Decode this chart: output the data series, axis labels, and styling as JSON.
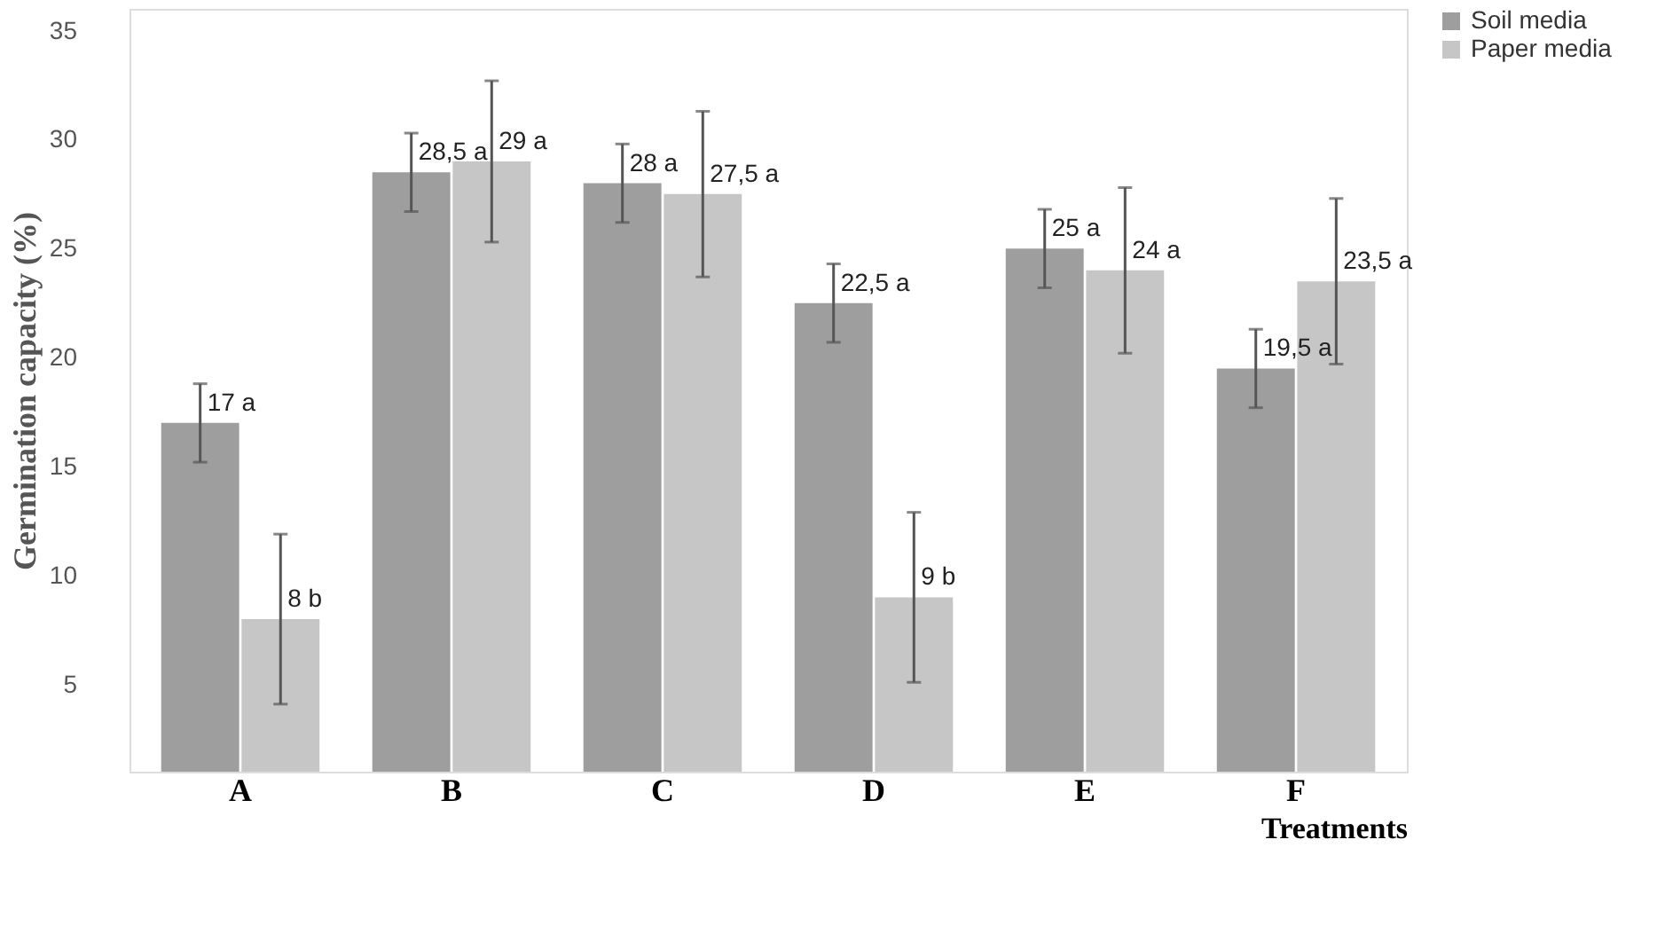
{
  "chart_data": {
    "type": "bar",
    "ylabel": "Germination capacity (%)",
    "xlabel": "Treatments",
    "categories": [
      "A",
      "B",
      "C",
      "D",
      "E",
      "F"
    ],
    "series": [
      {
        "name": "Soil  media",
        "color": "#9e9e9e",
        "values": [
          17,
          28.5,
          28,
          22.5,
          25,
          19.5
        ],
        "errors": [
          1.8,
          1.8,
          1.8,
          1.8,
          1.8,
          1.8
        ],
        "value_labels": [
          "17 a",
          "28,5 a",
          "28 a",
          "22,5 a",
          "25 a",
          "19,5 a"
        ]
      },
      {
        "name": "Paper media",
        "color": "#c6c6c6",
        "values": [
          8,
          29,
          27.5,
          9,
          24,
          23.5
        ],
        "errors": [
          3.9,
          3.7,
          3.8,
          3.9,
          3.8,
          3.8
        ],
        "value_labels": [
          "8 b",
          "29 a",
          "27,5 a",
          "9 b",
          "24 a",
          "23,5 a"
        ]
      }
    ],
    "ylim": [
      1,
      36
    ],
    "yticks": [
      5,
      10,
      15,
      20,
      25,
      30,
      35
    ],
    "grid": false,
    "legend": "right"
  }
}
